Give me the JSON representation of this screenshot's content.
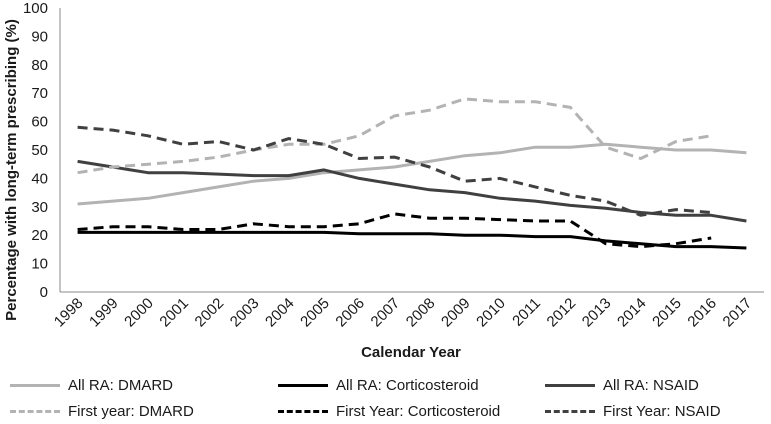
{
  "chart_data": {
    "type": "line",
    "title": "",
    "xlabel": "Calendar Year",
    "ylabel": "Percentage with long-term prescribing (%)",
    "ylim": [
      0,
      100
    ],
    "yticks": [
      "0",
      "10",
      "20",
      "30",
      "40",
      "50",
      "60",
      "70",
      "80",
      "90",
      "100"
    ],
    "x": [
      "1998",
      "1999",
      "2000",
      "2001",
      "2002",
      "2003",
      "2004",
      "2005",
      "2006",
      "2007",
      "2008",
      "2009",
      "2010",
      "2011",
      "2012",
      "2013",
      "2014",
      "2015",
      "2016",
      "2017"
    ],
    "grid": false,
    "legend_position": "bottom",
    "series": [
      {
        "name": "All RA: DMARD",
        "color": "#b3b3b3",
        "dash": "solid",
        "values": [
          31,
          32,
          33,
          35,
          37,
          39,
          40,
          42,
          43,
          44,
          46,
          48,
          49,
          51,
          51,
          52,
          51,
          50,
          50,
          49
        ]
      },
      {
        "name": "All RA: Corticosteroid",
        "color": "#000000",
        "dash": "solid",
        "values": [
          21,
          21,
          21,
          21,
          21,
          21,
          21,
          21,
          20.5,
          20.5,
          20.5,
          20,
          20,
          19.5,
          19.5,
          18,
          17,
          16,
          16,
          15.5
        ]
      },
      {
        "name": "All RA: NSAID",
        "color": "#404040",
        "dash": "solid",
        "values": [
          46,
          44,
          42,
          42,
          41.5,
          41,
          41,
          43,
          40,
          38,
          36,
          35,
          33,
          32,
          30.5,
          29.5,
          28,
          27,
          27,
          25
        ]
      },
      {
        "name": "First year: DMARD",
        "color": "#b3b3b3",
        "dash": "dashed",
        "values": [
          42,
          44,
          45,
          46,
          47.5,
          50,
          52,
          52,
          55,
          62,
          64,
          68,
          67,
          67,
          65,
          51,
          47,
          53,
          55,
          null
        ]
      },
      {
        "name": "First Year: Corticosteroid",
        "color": "#000000",
        "dash": "dashed",
        "values": [
          22,
          23,
          23,
          22,
          22,
          24,
          23,
          23,
          24,
          27.5,
          26,
          26,
          25.5,
          25,
          25,
          17,
          16,
          17,
          19,
          null
        ]
      },
      {
        "name": "First Year: NSAID",
        "color": "#404040",
        "dash": "dashed",
        "values": [
          58,
          57,
          55,
          52,
          53,
          50,
          54,
          52,
          47,
          47.5,
          44,
          39,
          40,
          37,
          34,
          32,
          27,
          29,
          28,
          null
        ]
      }
    ]
  }
}
